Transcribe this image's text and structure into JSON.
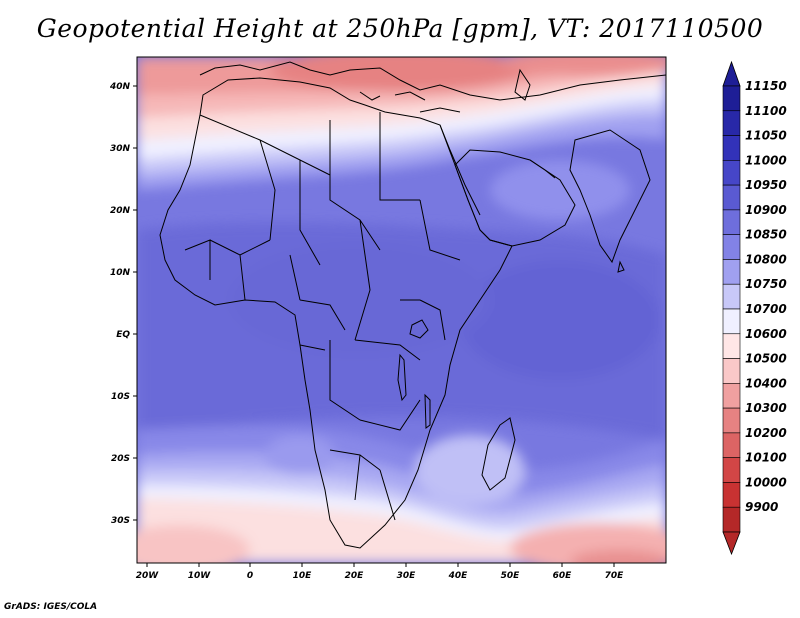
{
  "title": "Geopotential Height at 250hPa [gpm], VT: 2017110500",
  "credit": "GrADS: IGES/COLA",
  "map": {
    "region": "Africa and surroundings",
    "projection": "lat-lon",
    "lon_range": [
      -22,
      80
    ],
    "lat_range": [
      -37,
      46
    ],
    "lon_ticks": [
      "20W",
      "10W",
      "0",
      "10E",
      "20E",
      "30E",
      "40E",
      "50E",
      "60E",
      "70E"
    ],
    "lat_ticks": [
      "40N",
      "30N",
      "20N",
      "10N",
      "EQ",
      "10S",
      "20S",
      "30S"
    ],
    "field": "geopotential height at 250 hPa",
    "units": "gpm"
  },
  "legend": {
    "labels": [
      "11150",
      "11100",
      "11050",
      "11000",
      "10950",
      "10900",
      "10850",
      "10800",
      "10750",
      "10700",
      "10600",
      "10500",
      "10400",
      "10300",
      "10200",
      "10100",
      "10000",
      "9900"
    ],
    "colors": [
      "#1e1e96",
      "#2828a8",
      "#3232b9",
      "#4646c8",
      "#5a5ad2",
      "#6e6edc",
      "#8282e6",
      "#a0a0f0",
      "#c8c8f8",
      "#f0f0ff",
      "#ffe6e6",
      "#fac8c8",
      "#f0a0a0",
      "#e68282",
      "#dc6464",
      "#d24646",
      "#c83232",
      "#b42828"
    ]
  }
}
